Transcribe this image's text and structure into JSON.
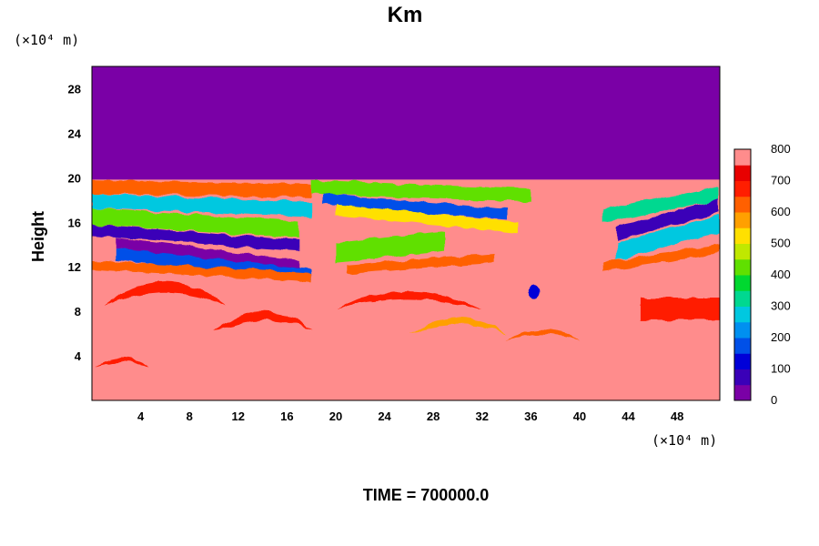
{
  "chart_data": {
    "type": "heatmap",
    "title": "Km",
    "ylabel": "Height",
    "x_unit": "(×10⁴ m)",
    "y_unit": "(×10⁴ m)",
    "footer": "TIME = 700000.0",
    "xlim": [
      0,
      51.5
    ],
    "ylim": [
      0,
      30
    ],
    "x_ticks": [
      4,
      8,
      12,
      16,
      20,
      24,
      28,
      32,
      36,
      40,
      44,
      48
    ],
    "y_ticks": [
      4,
      8,
      12,
      16,
      20,
      24,
      28
    ],
    "colorbar": {
      "min": 0,
      "max": 800,
      "ticks": [
        0,
        100,
        200,
        300,
        400,
        500,
        600,
        700,
        800
      ],
      "colors": [
        "#7a00a6",
        "#3a00b8",
        "#0000d8",
        "#0050e8",
        "#0090f0",
        "#00c8e0",
        "#00d890",
        "#00d830",
        "#60e000",
        "#c0e800",
        "#ffe000",
        "#ffa000",
        "#ff6000",
        "#ff1e00",
        "#e80000",
        "#ff8c8c"
      ]
    },
    "regions": {
      "upper_value": 0,
      "upper_range_y": [
        20,
        30
      ],
      "lower_value": 800,
      "lower_range_y": [
        0,
        20
      ],
      "turbulent_layer_y": [
        10,
        20
      ]
    }
  }
}
